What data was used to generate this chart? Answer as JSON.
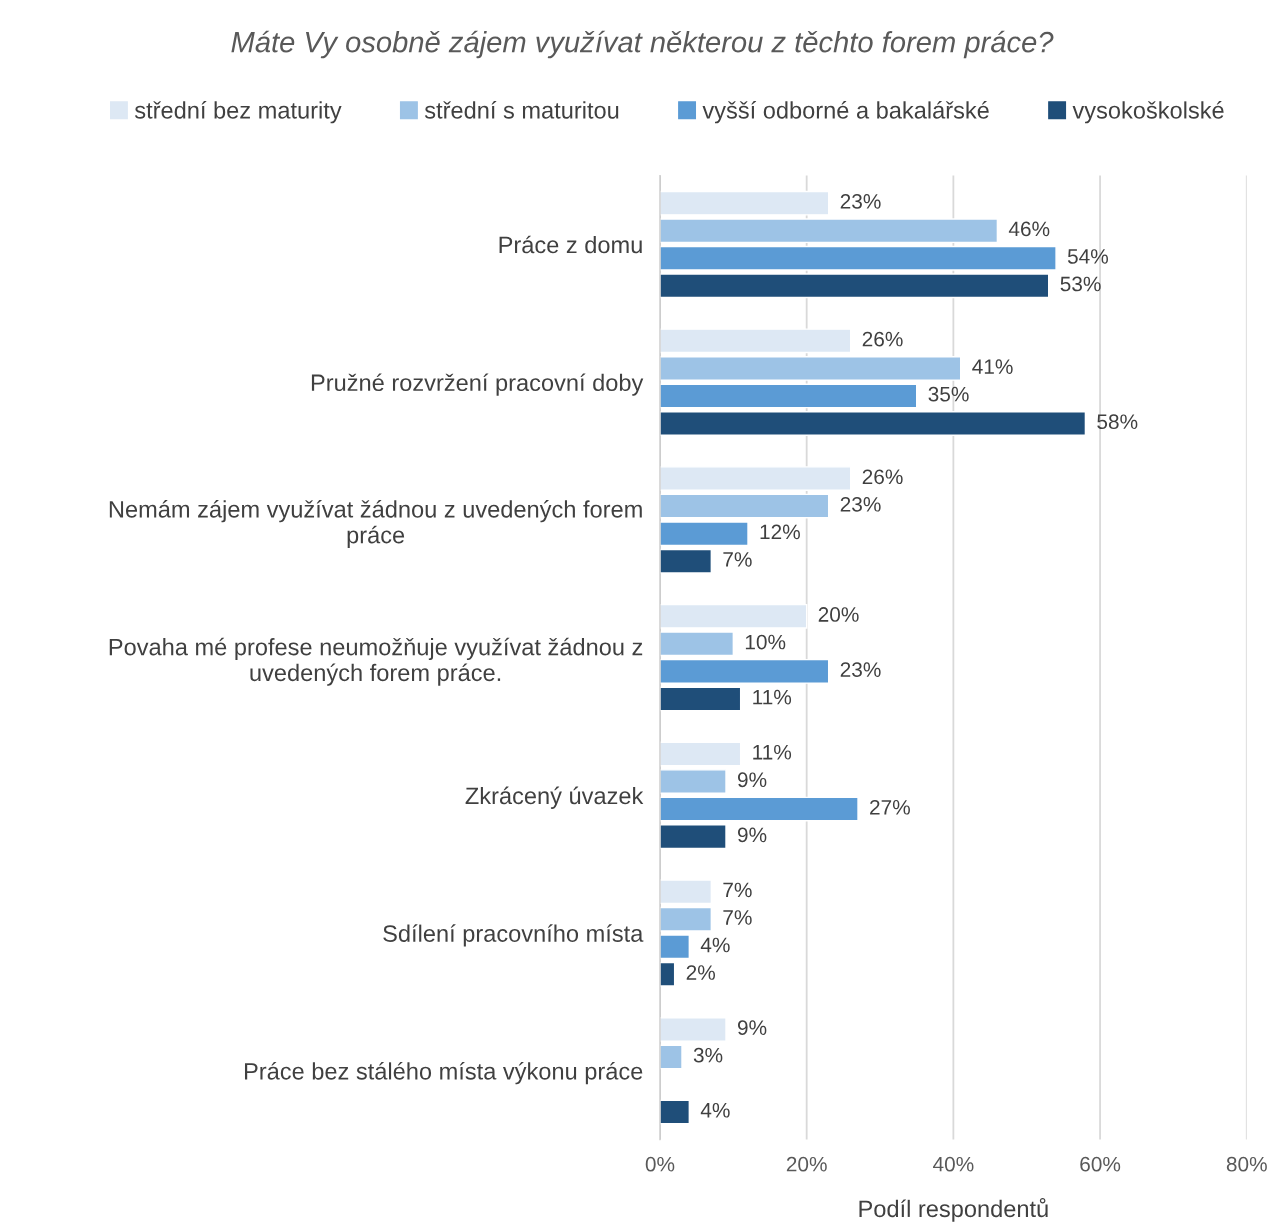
{
  "chart_data": {
    "type": "bar",
    "orientation": "horizontal",
    "title": "Máte Vy osobně zájem využívat některou z těchto forem práce?",
    "xlabel": "Podíl respondentů",
    "categories": [
      "Práce z domu",
      "Pružné rozvržení pracovní doby",
      "Nemám zájem využívat žádnou z uvedených forem\npráce",
      "Povaha mé profese neumožňuje využívat žádnou z\nuvedených forem práce.",
      "Zkrácený úvazek",
      "Sdílení pracovního místa",
      "Práce bez stálého místa výkonu práce"
    ],
    "series": [
      {
        "name": "střední bez maturity",
        "color": "#dde8f4",
        "values": [
          23,
          26,
          26,
          20,
          11,
          7,
          9
        ],
        "value_labels": [
          "23%",
          "26%",
          "26%",
          "20%",
          "11%",
          "7%",
          "9%"
        ]
      },
      {
        "name": "střední s maturitou",
        "color": "#9dc3e6",
        "values": [
          46,
          41,
          23,
          10,
          9,
          7,
          3
        ],
        "value_labels": [
          "46%",
          "41%",
          "23%",
          "10%",
          "9%",
          "7%",
          "3%"
        ]
      },
      {
        "name": "vyšší odborné a bakalářské",
        "color": "#5b9bd5",
        "values": [
          54,
          35,
          12,
          23,
          27,
          4,
          null
        ],
        "value_labels": [
          "54%",
          "35%",
          "12%",
          "23%",
          "27%",
          "4%",
          null
        ]
      },
      {
        "name": "vysokoškolské",
        "color": "#1f4e79",
        "values": [
          53,
          58,
          7,
          11,
          9,
          2,
          4
        ],
        "value_labels": [
          "53%",
          "58%",
          "7%",
          "11%",
          "9%",
          "2%",
          "4%"
        ]
      }
    ],
    "xlim": [
      0,
      80
    ],
    "xticks": [
      {
        "value": 0,
        "label": "0%"
      },
      {
        "value": 20,
        "label": "20%"
      },
      {
        "value": 40,
        "label": "40%"
      },
      {
        "value": 60,
        "label": "60%"
      },
      {
        "value": 80,
        "label": "80%"
      }
    ],
    "grid": "x",
    "legend": "top"
  }
}
